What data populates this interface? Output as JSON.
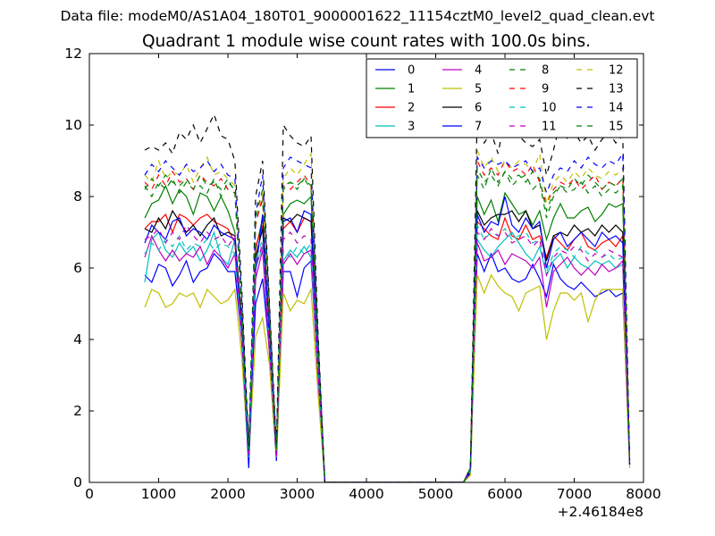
{
  "suptitle": "Data file: modeM0/AS1A04_180T01_9000001622_11154cztM0_level2_quad_clean.evt",
  "chart_data": {
    "type": "line",
    "title": "Quadrant 1 module wise count rates with 100.0s bins.",
    "xlabel": "",
    "ylabel": "",
    "x_offset_label": "+2.46184e8",
    "xlim": [
      0,
      8000
    ],
    "ylim": [
      0,
      12
    ],
    "xticks": [
      0,
      1000,
      2000,
      3000,
      4000,
      5000,
      6000,
      7000,
      8000
    ],
    "yticks": [
      0,
      2,
      4,
      6,
      8,
      10,
      12
    ],
    "grid": false,
    "legend_position": "top-right",
    "legend_columns": 4,
    "x_values_offset": 246184000,
    "x": [
      800,
      900,
      1000,
      1100,
      1200,
      1300,
      1400,
      1500,
      1600,
      1700,
      1800,
      1900,
      2000,
      2100,
      2200,
      2300,
      2400,
      2500,
      2600,
      2700,
      2800,
      2900,
      3000,
      3100,
      3200,
      3300,
      3400,
      3500,
      3600,
      3700,
      3800,
      3900,
      4000,
      4100,
      4200,
      4300,
      4400,
      4500,
      4600,
      4700,
      4800,
      4900,
      5000,
      5100,
      5200,
      5300,
      5400,
      5500,
      5600,
      5700,
      5800,
      5900,
      6000,
      6100,
      6200,
      6300,
      6400,
      6500,
      6600,
      6700,
      6800,
      6900,
      7000,
      7100,
      7200,
      7300,
      7400,
      7500,
      7600,
      7700,
      7800
    ],
    "series": [
      {
        "name": "0",
        "color": "#0000ff",
        "dashed": false,
        "values": [
          5.8,
          5.6,
          6.1,
          6.0,
          5.5,
          5.8,
          6.2,
          5.6,
          5.9,
          6.0,
          6.4,
          6.2,
          5.9,
          5.9,
          4.0,
          0.8,
          5.0,
          5.7,
          3.7,
          0.8,
          5.9,
          5.9,
          5.2,
          6.0,
          6.2,
          3.0,
          0.0,
          0,
          0,
          0,
          0,
          0,
          0,
          0,
          0,
          0,
          0,
          0,
          0,
          0,
          0,
          0,
          0,
          0,
          0,
          0,
          0,
          0.25,
          6.4,
          5.9,
          6.4,
          5.9,
          6.0,
          5.7,
          5.6,
          5.7,
          6.1,
          5.7,
          5.2,
          6.1,
          5.7,
          5.5,
          5.4,
          5.6,
          5.4,
          5.2,
          5.3,
          5.4,
          5.2,
          5.3,
          0.5
        ]
      },
      {
        "name": "1",
        "color": "#008000",
        "dashed": false,
        "values": [
          7.4,
          7.8,
          7.9,
          8.3,
          7.8,
          8.2,
          8.0,
          7.5,
          8.1,
          8.0,
          7.6,
          8.0,
          7.6,
          7.0,
          4.3,
          0.8,
          6.5,
          7.4,
          4.2,
          0.8,
          7.5,
          7.8,
          7.9,
          7.8,
          8.0,
          3.6,
          0.0,
          0,
          0,
          0,
          0,
          0,
          0,
          0,
          0,
          0,
          0,
          0,
          0,
          0,
          0,
          0,
          0,
          0,
          0,
          0,
          0,
          0.3,
          8.0,
          7.5,
          7.9,
          7.3,
          8.1,
          7.8,
          7.5,
          7.6,
          7.2,
          7.6,
          6.8,
          7.4,
          7.8,
          7.4,
          7.4,
          7.6,
          7.7,
          7.3,
          7.5,
          7.8,
          7.7,
          7.8,
          0.5
        ]
      },
      {
        "name": "2",
        "color": "#ff0000",
        "dashed": false,
        "values": [
          7.1,
          7.3,
          7.3,
          7.5,
          7.0,
          7.5,
          7.4,
          7.2,
          7.4,
          7.5,
          7.3,
          7.2,
          7.1,
          6.7,
          4.1,
          0.7,
          6.6,
          7.2,
          4.4,
          0.8,
          7.1,
          7.3,
          7.0,
          7.4,
          7.3,
          3.4,
          0.0,
          0,
          0,
          0,
          0,
          0,
          0,
          0,
          0,
          0,
          0,
          0,
          0,
          0,
          0,
          0,
          0,
          0,
          0,
          0,
          0,
          0.3,
          7.3,
          7.1,
          6.9,
          6.8,
          7.4,
          6.9,
          6.8,
          7.2,
          6.8,
          6.9,
          6.3,
          6.9,
          6.7,
          6.5,
          6.8,
          7.0,
          6.6,
          6.5,
          6.7,
          6.8,
          6.6,
          6.9,
          0.5
        ]
      },
      {
        "name": "3",
        "color": "#00bfbf",
        "dashed": false,
        "values": [
          5.6,
          6.8,
          7.0,
          6.5,
          6.3,
          6.7,
          6.4,
          6.6,
          6.2,
          6.5,
          7.0,
          6.3,
          6.1,
          6.8,
          4.0,
          0.7,
          6.0,
          6.6,
          3.8,
          0.8,
          6.2,
          6.5,
          6.3,
          6.6,
          6.3,
          3.0,
          0.0,
          0,
          0,
          0,
          0,
          0,
          0,
          0,
          0,
          0,
          0,
          0,
          0,
          0,
          0,
          0,
          0,
          0,
          0,
          0,
          0,
          0.3,
          6.8,
          6.5,
          6.3,
          6.6,
          6.8,
          7.0,
          6.7,
          6.4,
          6.2,
          6.6,
          5.8,
          6.2,
          6.4,
          6.0,
          6.3,
          6.1,
          6.0,
          6.2,
          6.1,
          6.2,
          6.0,
          6.1,
          0.5
        ]
      },
      {
        "name": "4",
        "color": "#bf00bf",
        "dashed": false,
        "values": [
          6.3,
          6.9,
          6.5,
          6.2,
          6.5,
          6.2,
          6.4,
          6.3,
          6.6,
          6.1,
          6.5,
          6.3,
          6.0,
          6.4,
          3.9,
          0.7,
          5.7,
          6.5,
          3.6,
          0.7,
          6.1,
          6.4,
          6.1,
          6.4,
          6.5,
          2.9,
          0.0,
          0,
          0,
          0,
          0,
          0,
          0,
          0,
          0,
          0,
          0,
          0,
          0,
          0,
          0,
          0,
          0,
          0,
          0,
          0,
          0,
          0.3,
          6.7,
          6.2,
          6.3,
          6.5,
          6.1,
          6.4,
          6.3,
          6.2,
          6.0,
          6.3,
          4.9,
          5.9,
          6.1,
          6.3,
          6.0,
          5.8,
          6.0,
          5.8,
          6.1,
          5.9,
          6.0,
          6.2,
          0.5
        ]
      },
      {
        "name": "5",
        "color": "#bfbf00",
        "dashed": false,
        "values": [
          4.9,
          5.4,
          5.3,
          4.9,
          5.0,
          5.3,
          5.2,
          5.3,
          4.9,
          5.4,
          5.2,
          5.0,
          5.1,
          5.4,
          3.5,
          0.6,
          4.1,
          4.6,
          3.3,
          0.6,
          5.3,
          4.8,
          5.1,
          5.0,
          5.4,
          2.5,
          0.0,
          0,
          0,
          0,
          0,
          0,
          0,
          0,
          0,
          0,
          0,
          0,
          0,
          0,
          0,
          0,
          0,
          0,
          0,
          0,
          0,
          0.2,
          5.8,
          5.3,
          5.8,
          5.5,
          5.3,
          5.2,
          4.8,
          5.3,
          5.4,
          5.5,
          4.0,
          4.8,
          5.3,
          5.3,
          5.1,
          5.3,
          4.5,
          5.1,
          5.4,
          5.4,
          5.4,
          5.4,
          0.4
        ]
      },
      {
        "name": "6",
        "color": "#000000",
        "dashed": false,
        "values": [
          7.1,
          7.0,
          7.4,
          7.1,
          7.6,
          7.3,
          7.0,
          7.2,
          6.9,
          7.2,
          7.4,
          6.9,
          7.0,
          6.9,
          4.5,
          0.8,
          6.3,
          7.1,
          4.2,
          0.8,
          7.4,
          7.3,
          7.5,
          7.4,
          7.3,
          3.5,
          0.0,
          0,
          0,
          0,
          0,
          0,
          0,
          0,
          0,
          0,
          0,
          0,
          0,
          0,
          0,
          0,
          0,
          0,
          0,
          0,
          0,
          0.3,
          7.6,
          7.2,
          7.4,
          7.5,
          7.5,
          7.6,
          7.3,
          7.6,
          7.1,
          7.2,
          6.2,
          6.9,
          7.0,
          6.9,
          7.2,
          7.0,
          7.1,
          6.9,
          7.2,
          7.0,
          7.2,
          7.0,
          0.5
        ]
      },
      {
        "name": "7",
        "color": "#0000ff",
        "dashed": false,
        "values": [
          6.7,
          7.2,
          7.0,
          6.8,
          7.3,
          7.4,
          6.9,
          7.1,
          7.0,
          6.8,
          7.2,
          7.0,
          6.9,
          6.8,
          4.2,
          0.4,
          5.9,
          7.5,
          4.0,
          0.6,
          7.3,
          7.4,
          7.0,
          7.6,
          7.5,
          3.3,
          0.0,
          0,
          0,
          0,
          0,
          0,
          0,
          0,
          0,
          0,
          0,
          0,
          0,
          0,
          0,
          0,
          0,
          0,
          0,
          0,
          0,
          0.3,
          7.5,
          7.0,
          7.3,
          7.2,
          8.0,
          7.2,
          7.0,
          7.4,
          7.1,
          7.3,
          6.0,
          6.8,
          7.0,
          6.6,
          6.8,
          7.0,
          6.8,
          6.6,
          7.0,
          6.8,
          6.9,
          6.7,
          0.5
        ]
      },
      {
        "name": "8",
        "color": "#008000",
        "dashed": true,
        "values": [
          8.3,
          8.0,
          8.4,
          8.2,
          8.5,
          8.1,
          8.4,
          8.2,
          8.3,
          8.1,
          8.5,
          8.0,
          8.4,
          8.2,
          4.8,
          0.9,
          7.3,
          7.9,
          4.6,
          0.9,
          8.2,
          8.4,
          8.3,
          8.5,
          8.2,
          3.8,
          0.0,
          0,
          0,
          0,
          0,
          0,
          0,
          0,
          0,
          0,
          0,
          0,
          0,
          0,
          0,
          0,
          0,
          0,
          0,
          0,
          0,
          0.4,
          8.6,
          8.2,
          8.8,
          8.4,
          8.7,
          8.3,
          8.5,
          8.6,
          8.2,
          8.4,
          7.4,
          8.0,
          8.3,
          8.1,
          8.2,
          8.4,
          8.1,
          8.3,
          8.0,
          8.2,
          8.1,
          8.3,
          0.6
        ]
      },
      {
        "name": "9",
        "color": "#ff0000",
        "dashed": true,
        "values": [
          8.4,
          8.2,
          8.6,
          8.3,
          8.7,
          8.4,
          8.5,
          8.2,
          8.6,
          8.4,
          8.3,
          8.5,
          8.2,
          8.1,
          4.9,
          0.9,
          7.2,
          8.0,
          4.7,
          0.9,
          8.3,
          8.2,
          8.4,
          8.6,
          8.3,
          3.9,
          0.0,
          0,
          0,
          0,
          0,
          0,
          0,
          0,
          0,
          0,
          0,
          0,
          0,
          0,
          0,
          0,
          0,
          0,
          0,
          0,
          0,
          0.4,
          9.0,
          8.6,
          8.8,
          8.6,
          9.0,
          8.7,
          8.8,
          8.6,
          8.9,
          8.4,
          7.8,
          8.2,
          8.4,
          8.3,
          8.5,
          8.2,
          8.4,
          8.6,
          8.2,
          8.4,
          8.3,
          8.5,
          0.6
        ]
      },
      {
        "name": "10",
        "color": "#00bfbf",
        "dashed": true,
        "values": [
          6.4,
          6.7,
          6.5,
          6.8,
          6.6,
          6.9,
          6.5,
          6.7,
          6.6,
          6.8,
          6.5,
          6.7,
          6.6,
          6.4,
          4.1,
          0.7,
          6.2,
          6.8,
          3.9,
          0.7,
          6.5,
          6.3,
          6.6,
          6.4,
          6.7,
          3.1,
          0.0,
          0,
          0,
          0,
          0,
          0,
          0,
          0,
          0,
          0,
          0,
          0,
          0,
          0,
          0,
          0,
          0,
          0,
          0,
          0,
          0,
          0.3,
          7.2,
          6.8,
          7.0,
          6.9,
          7.1,
          6.8,
          6.9,
          7.0,
          6.7,
          6.8,
          5.9,
          6.4,
          6.6,
          6.5,
          6.3,
          6.6,
          6.4,
          6.5,
          6.3,
          6.4,
          6.2,
          6.3,
          0.5
        ]
      },
      {
        "name": "11",
        "color": "#bf00bf",
        "dashed": true,
        "values": [
          6.8,
          6.9,
          7.1,
          6.7,
          7.0,
          6.8,
          7.2,
          6.9,
          6.7,
          7.0,
          6.8,
          6.9,
          6.6,
          6.9,
          4.2,
          0.7,
          6.0,
          6.7,
          3.8,
          0.7,
          6.8,
          7.0,
          6.7,
          6.9,
          6.8,
          3.2,
          0.0,
          0,
          0,
          0,
          0,
          0,
          0,
          0,
          0,
          0,
          0,
          0,
          0,
          0,
          0,
          0,
          0,
          0,
          0,
          0,
          0,
          0.3,
          7.0,
          6.8,
          7.1,
          6.9,
          7.0,
          6.7,
          6.8,
          6.9,
          6.6,
          6.8,
          5.8,
          6.3,
          6.5,
          6.4,
          6.6,
          6.5,
          6.2,
          6.4,
          6.3,
          6.5,
          6.4,
          6.3,
          0.5
        ]
      },
      {
        "name": "12",
        "color": "#bfbf00",
        "dashed": true,
        "values": [
          8.6,
          8.4,
          9.0,
          8.5,
          8.7,
          8.6,
          8.9,
          8.4,
          8.8,
          9.1,
          8.6,
          8.7,
          8.5,
          8.3,
          5.0,
          0.9,
          7.6,
          8.1,
          4.8,
          0.9,
          8.5,
          8.8,
          8.6,
          8.9,
          9.2,
          4.0,
          0.0,
          0,
          0,
          0,
          0,
          0,
          0,
          0,
          0,
          0,
          0,
          0,
          0,
          0,
          0,
          0,
          0,
          0,
          0,
          0,
          0,
          0.4,
          9.3,
          8.8,
          9.1,
          8.7,
          9.0,
          8.8,
          9.0,
          8.9,
          8.7,
          9.2,
          7.8,
          8.4,
          8.6,
          8.4,
          8.7,
          8.5,
          8.8,
          8.6,
          8.5,
          8.7,
          8.6,
          8.8,
          0.6
        ]
      },
      {
        "name": "13",
        "color": "#000000",
        "dashed": true,
        "values": [
          9.3,
          9.4,
          9.3,
          9.5,
          9.2,
          9.8,
          9.6,
          10.0,
          9.5,
          9.9,
          10.3,
          9.7,
          9.6,
          9.0,
          5.4,
          1.0,
          8.0,
          9.0,
          5.0,
          1.0,
          10.0,
          9.7,
          9.5,
          9.4,
          9.7,
          4.2,
          0.0,
          0,
          0,
          0,
          0,
          0,
          0,
          0,
          0,
          0,
          0,
          0,
          0,
          0,
          0,
          0,
          0,
          0,
          0,
          0,
          0,
          0.4,
          10.4,
          9.5,
          9.8,
          9.2,
          10.2,
          10.3,
          9.7,
          9.5,
          9.4,
          9.6,
          8.6,
          9.3,
          10.1,
          9.6,
          9.8,
          9.5,
          9.7,
          9.3,
          9.6,
          9.8,
          9.5,
          9.7,
          0.6
        ]
      },
      {
        "name": "14",
        "color": "#0000ff",
        "dashed": true,
        "values": [
          8.6,
          8.9,
          8.7,
          9.0,
          8.8,
          8.6,
          8.9,
          8.7,
          8.8,
          9.0,
          8.7,
          8.9,
          8.6,
          8.5,
          5.1,
          0.9,
          7.5,
          8.6,
          4.9,
          0.9,
          8.8,
          9.1,
          9.0,
          8.9,
          8.8,
          4.0,
          0.0,
          0,
          0,
          0,
          0,
          0,
          0,
          0,
          0,
          0,
          0,
          0,
          0,
          0,
          0,
          0,
          0,
          0,
          0,
          0,
          0,
          0.4,
          9.1,
          8.8,
          9.0,
          8.9,
          9.0,
          8.8,
          8.9,
          9.0,
          8.7,
          8.8,
          8.1,
          8.6,
          8.8,
          8.7,
          9.0,
          8.8,
          9.1,
          8.9,
          8.8,
          9.0,
          8.9,
          9.2,
          0.6
        ]
      },
      {
        "name": "15",
        "color": "#008000",
        "dashed": true,
        "values": [
          8.2,
          8.5,
          8.3,
          8.6,
          8.4,
          8.3,
          8.5,
          8.2,
          8.6,
          8.3,
          8.4,
          8.2,
          8.5,
          8.1,
          4.8,
          0.9,
          7.4,
          8.2,
          4.7,
          0.9,
          8.3,
          8.4,
          8.2,
          8.5,
          8.3,
          3.8,
          0.0,
          0,
          0,
          0,
          0,
          0,
          0,
          0,
          0,
          0,
          0,
          0,
          0,
          0,
          0,
          0,
          0,
          0,
          0,
          0,
          0,
          0.4,
          8.8,
          8.4,
          8.6,
          8.3,
          8.7,
          8.5,
          8.6,
          8.4,
          8.7,
          8.5,
          7.6,
          8.1,
          8.3,
          8.2,
          8.5,
          8.3,
          8.6,
          8.4,
          8.2,
          8.4,
          8.3,
          8.5,
          0.6
        ]
      }
    ]
  }
}
